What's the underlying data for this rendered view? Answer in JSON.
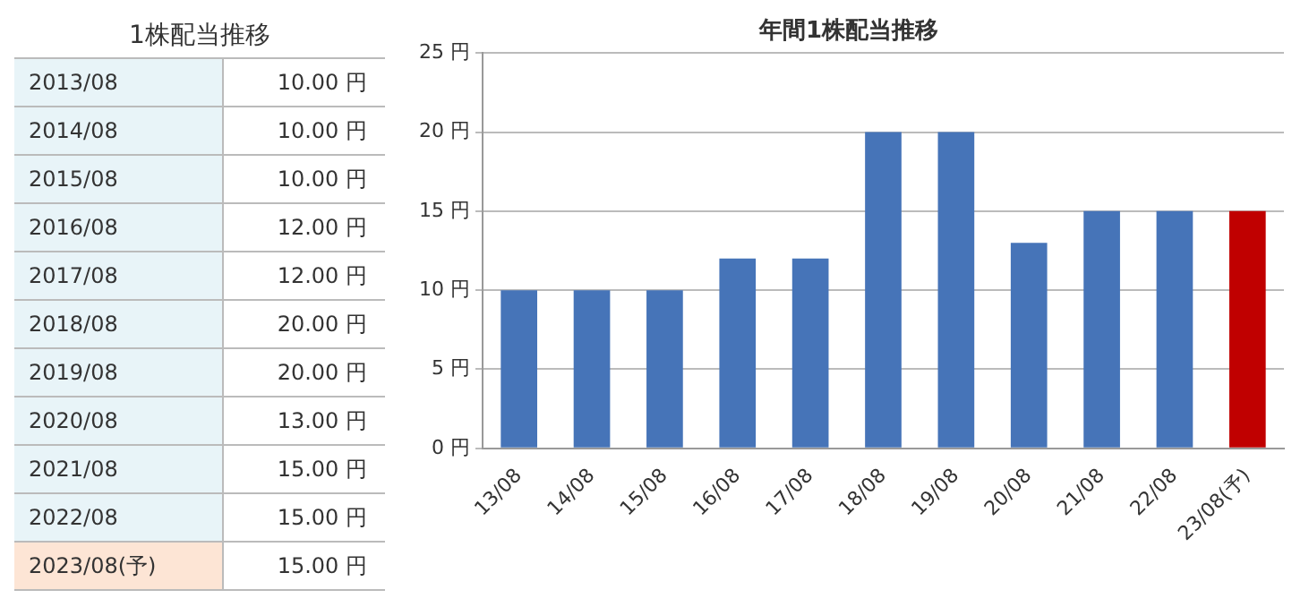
{
  "chart_data": [
    {
      "type": "other",
      "title": "1株配当推移",
      "categories": [
        "2013/08",
        "2014/08",
        "2015/08",
        "2016/08",
        "2017/08",
        "2018/08",
        "2019/08",
        "2020/08",
        "2021/08",
        "2022/08",
        "2023/08(予)"
      ],
      "value_labels": [
        "10.00 円",
        "10.00 円",
        "10.00 円",
        "12.00 円",
        "12.00 円",
        "20.00 円",
        "20.00 円",
        "13.00 円",
        "15.00 円",
        "15.00 円",
        "15.00 円"
      ],
      "colors": [
        "#e8f4f8",
        "#e8f4f8",
        "#e8f4f8",
        "#e8f4f8",
        "#e8f4f8",
        "#e8f4f8",
        "#e8f4f8",
        "#e8f4f8",
        "#e8f4f8",
        "#e8f4f8",
        "#fde5d5"
      ]
    },
    {
      "type": "bar",
      "title": "年間1株配当推移",
      "categories": [
        "13/08",
        "14/08",
        "15/08",
        "16/08",
        "17/08",
        "18/08",
        "19/08",
        "20/08",
        "21/08",
        "22/08",
        "23/08(予)"
      ],
      "values": [
        10,
        10,
        10,
        12,
        12,
        20,
        20,
        13,
        15,
        15,
        15
      ],
      "colors": [
        "#4674b8",
        "#4674b8",
        "#4674b8",
        "#4674b8",
        "#4674b8",
        "#4674b8",
        "#4674b8",
        "#4674b8",
        "#4674b8",
        "#4674b8",
        "#c00000"
      ],
      "ylim": [
        0,
        25
      ],
      "yticks": [
        {
          "value": 0,
          "label": "0 円"
        },
        {
          "value": 5,
          "label": "5 円"
        },
        {
          "value": 10,
          "label": "10 円"
        },
        {
          "value": 15,
          "label": "15 円"
        },
        {
          "value": 20,
          "label": "20 円"
        },
        {
          "value": 25,
          "label": "25 円"
        }
      ],
      "grid": "y",
      "legend": false
    }
  ]
}
